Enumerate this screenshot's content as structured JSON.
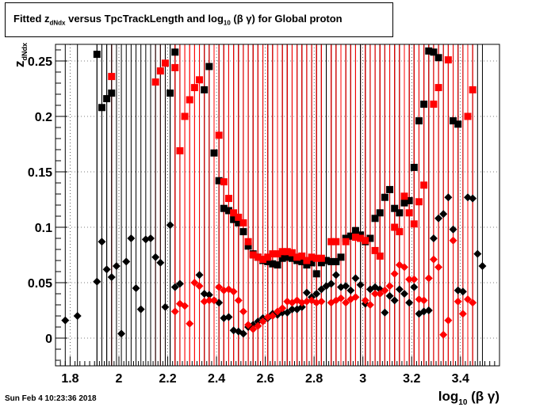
{
  "chart_data": {
    "type": "scatter",
    "title_parts": {
      "pre": "Fitted  z",
      "sub": "dNdx",
      "mid": " versus TpcTrackLength and log",
      "sub2": "10",
      "post": " (β γ) for Global proton"
    },
    "xlabel": "log10 (β γ)",
    "ylabel": "zdNdx",
    "xlim": [
      1.74,
      3.56
    ],
    "ylim": [
      -0.025,
      0.265
    ],
    "x_ticks": [
      "1.8",
      "2",
      "2.2",
      "2.4",
      "2.6",
      "2.8",
      "3",
      "3.2",
      "3.4"
    ],
    "y_ticks": [
      "0",
      "0.05",
      "0.1",
      "0.15",
      "0.2",
      "0.25"
    ],
    "grid": true,
    "series": [
      {
        "marker": "square",
        "color": "#000000",
        "points": [
          [
            1.91,
            0.256
          ],
          [
            1.93,
            0.208
          ],
          [
            1.95,
            0.216
          ],
          [
            1.97,
            0.221
          ],
          [
            2.21,
            0.221
          ],
          [
            2.23,
            0.258
          ],
          [
            2.35,
            0.224
          ],
          [
            2.37,
            0.245
          ],
          [
            2.39,
            0.167
          ],
          [
            2.41,
            0.142
          ],
          [
            2.43,
            0.117
          ],
          [
            2.45,
            0.115
          ],
          [
            2.47,
            0.107
          ],
          [
            2.49,
            0.104
          ],
          [
            2.51,
            0.096
          ],
          [
            2.53,
            0.083
          ],
          [
            2.55,
            0.076
          ],
          [
            2.57,
            0.073
          ],
          [
            2.59,
            0.07
          ],
          [
            2.61,
            0.069
          ],
          [
            2.63,
            0.067
          ],
          [
            2.65,
            0.066
          ],
          [
            2.67,
            0.072
          ],
          [
            2.69,
            0.073
          ],
          [
            2.71,
            0.072
          ],
          [
            2.73,
            0.07
          ],
          [
            2.75,
            0.069
          ],
          [
            2.77,
            0.066
          ],
          [
            2.79,
            0.068
          ],
          [
            2.81,
            0.058
          ],
          [
            2.83,
            0.068
          ],
          [
            2.85,
            0.07
          ],
          [
            2.87,
            0.069
          ],
          [
            2.89,
            0.069
          ],
          [
            2.91,
            0.073
          ],
          [
            2.93,
            0.09
          ],
          [
            2.95,
            0.092
          ],
          [
            2.97,
            0.097
          ],
          [
            2.99,
            0.093
          ],
          [
            3.01,
            0.087
          ],
          [
            3.03,
            0.09
          ],
          [
            3.05,
            0.108
          ],
          [
            3.07,
            0.113
          ],
          [
            3.09,
            0.127
          ],
          [
            3.11,
            0.134
          ],
          [
            3.13,
            0.117
          ],
          [
            3.15,
            0.113
          ],
          [
            3.17,
            0.122
          ],
          [
            3.19,
            0.124
          ],
          [
            3.21,
            0.154
          ],
          [
            3.23,
            0.196
          ],
          [
            3.25,
            0.211
          ],
          [
            3.27,
            0.259
          ],
          [
            3.29,
            0.258
          ],
          [
            3.31,
            0.253
          ],
          [
            3.37,
            0.196
          ],
          [
            3.39,
            0.193
          ]
        ]
      },
      {
        "marker": "square",
        "color": "#ff0000",
        "points": [
          [
            1.97,
            0.236
          ],
          [
            2.15,
            0.231
          ],
          [
            2.17,
            0.241
          ],
          [
            2.19,
            0.248
          ],
          [
            2.23,
            0.244
          ],
          [
            2.25,
            0.169
          ],
          [
            2.27,
            0.2
          ],
          [
            2.29,
            0.215
          ],
          [
            2.31,
            0.226
          ],
          [
            2.33,
            0.233
          ],
          [
            2.41,
            0.183
          ],
          [
            2.43,
            0.141
          ],
          [
            2.45,
            0.126
          ],
          [
            2.47,
            0.113
          ],
          [
            2.49,
            0.109
          ],
          [
            2.51,
            0.104
          ],
          [
            2.53,
            0.087
          ],
          [
            2.55,
            0.075
          ],
          [
            2.57,
            0.073
          ],
          [
            2.59,
            0.071
          ],
          [
            2.61,
            0.073
          ],
          [
            2.63,
            0.076
          ],
          [
            2.65,
            0.076
          ],
          [
            2.67,
            0.078
          ],
          [
            2.69,
            0.078
          ],
          [
            2.71,
            0.077
          ],
          [
            2.73,
            0.073
          ],
          [
            2.75,
            0.074
          ],
          [
            2.77,
            0.07
          ],
          [
            2.79,
            0.073
          ],
          [
            2.81,
            0.072
          ],
          [
            2.83,
            0.072
          ],
          [
            2.87,
            0.087
          ],
          [
            2.89,
            0.087
          ],
          [
            2.93,
            0.087
          ],
          [
            2.97,
            0.091
          ],
          [
            2.99,
            0.09
          ],
          [
            3.01,
            0.088
          ],
          [
            3.05,
            0.079
          ],
          [
            3.07,
            0.074
          ],
          [
            3.13,
            0.1
          ],
          [
            3.15,
            0.096
          ],
          [
            3.17,
            0.128
          ],
          [
            3.19,
            0.113
          ],
          [
            3.21,
            0.103
          ],
          [
            3.23,
            0.123
          ],
          [
            3.25,
            0.138
          ],
          [
            3.29,
            0.211
          ],
          [
            3.31,
            0.226
          ],
          [
            3.35,
            0.251
          ],
          [
            3.43,
            0.2
          ],
          [
            3.45,
            0.224
          ]
        ]
      },
      {
        "marker": "diamond",
        "color": "#000000",
        "points": [
          [
            1.78,
            0.016
          ],
          [
            1.83,
            0.02
          ],
          [
            1.91,
            0.051
          ],
          [
            1.93,
            0.087
          ],
          [
            1.95,
            0.062
          ],
          [
            1.97,
            0.055
          ],
          [
            1.99,
            0.065
          ],
          [
            2.01,
            0.004
          ],
          [
            2.03,
            0.069
          ],
          [
            2.05,
            0.09
          ],
          [
            2.07,
            0.045
          ],
          [
            2.09,
            0.026
          ],
          [
            2.11,
            0.089
          ],
          [
            2.13,
            0.09
          ],
          [
            2.15,
            0.073
          ],
          [
            2.17,
            0.068
          ],
          [
            2.19,
            0.028
          ],
          [
            2.21,
            0.102
          ],
          [
            2.23,
            0.046
          ],
          [
            2.25,
            0.049
          ],
          [
            2.33,
            0.057
          ],
          [
            2.35,
            0.04
          ],
          [
            2.37,
            0.039
          ],
          [
            2.39,
            0.034
          ],
          [
            2.41,
            0.032
          ],
          [
            2.43,
            0.018
          ],
          [
            2.45,
            0.019
          ],
          [
            2.47,
            0.007
          ],
          [
            2.49,
            0.006
          ],
          [
            2.51,
            0.004
          ],
          [
            2.53,
            0.01
          ],
          [
            2.55,
            0.012
          ],
          [
            2.57,
            0.015
          ],
          [
            2.59,
            0.018
          ],
          [
            2.61,
            0.018
          ],
          [
            2.63,
            0.022
          ],
          [
            2.65,
            0.021
          ],
          [
            2.67,
            0.023
          ],
          [
            2.69,
            0.023
          ],
          [
            2.71,
            0.026
          ],
          [
            2.73,
            0.026
          ],
          [
            2.75,
            0.028
          ],
          [
            2.77,
            0.041
          ],
          [
            2.79,
            0.037
          ],
          [
            2.81,
            0.04
          ],
          [
            2.83,
            0.044
          ],
          [
            2.85,
            0.047
          ],
          [
            2.87,
            0.049
          ],
          [
            2.89,
            0.057
          ],
          [
            2.91,
            0.046
          ],
          [
            2.93,
            0.047
          ],
          [
            2.95,
            0.043
          ],
          [
            2.97,
            0.054
          ],
          [
            2.99,
            0.048
          ],
          [
            3.01,
            0.031
          ],
          [
            3.03,
            0.044
          ],
          [
            3.05,
            0.046
          ],
          [
            3.07,
            0.044
          ],
          [
            3.09,
            0.023
          ],
          [
            3.11,
            0.038
          ],
          [
            3.13,
            0.034
          ],
          [
            3.15,
            0.044
          ],
          [
            3.17,
            0.04
          ],
          [
            3.19,
            0.032
          ],
          [
            3.21,
            0.046
          ],
          [
            3.23,
            0.022
          ],
          [
            3.25,
            0.024
          ],
          [
            3.27,
            0.025
          ],
          [
            3.29,
            0.09
          ],
          [
            3.31,
            0.108
          ],
          [
            3.33,
            0.112
          ],
          [
            3.35,
            0.127
          ],
          [
            3.37,
            0.098
          ],
          [
            3.39,
            0.043
          ],
          [
            3.41,
            0.042
          ],
          [
            3.43,
            0.127
          ],
          [
            3.45,
            0.126
          ],
          [
            3.47,
            0.076
          ],
          [
            3.49,
            0.065
          ]
        ]
      },
      {
        "marker": "diamond",
        "color": "#ff0000",
        "points": [
          [
            2.23,
            0.024
          ],
          [
            2.25,
            0.031
          ],
          [
            2.27,
            0.029
          ],
          [
            2.29,
            0.013
          ],
          [
            2.31,
            0.05
          ],
          [
            2.33,
            0.047
          ],
          [
            2.35,
            0.033
          ],
          [
            2.37,
            0.034
          ],
          [
            2.39,
            0.034
          ],
          [
            2.41,
            0.046
          ],
          [
            2.43,
            0.043
          ],
          [
            2.45,
            0.044
          ],
          [
            2.47,
            0.042
          ],
          [
            2.49,
            0.034
          ],
          [
            2.51,
            0.024
          ],
          [
            2.53,
            0.012
          ],
          [
            2.55,
            0.008
          ],
          [
            2.57,
            0.011
          ],
          [
            2.59,
            0.015
          ],
          [
            2.61,
            0.019
          ],
          [
            2.63,
            0.02
          ],
          [
            2.65,
            0.024
          ],
          [
            2.67,
            0.027
          ],
          [
            2.69,
            0.033
          ],
          [
            2.71,
            0.032
          ],
          [
            2.73,
            0.034
          ],
          [
            2.75,
            0.032
          ],
          [
            2.77,
            0.033
          ],
          [
            2.79,
            0.034
          ],
          [
            2.81,
            0.032
          ],
          [
            2.83,
            0.033
          ],
          [
            2.87,
            0.032
          ],
          [
            2.89,
            0.034
          ],
          [
            2.91,
            0.036
          ],
          [
            2.93,
            0.032
          ],
          [
            2.95,
            0.035
          ],
          [
            2.97,
            0.037
          ],
          [
            3.01,
            0.034
          ],
          [
            3.03,
            0.03
          ],
          [
            3.05,
            0.04
          ],
          [
            3.07,
            0.04
          ],
          [
            3.09,
            0.043
          ],
          [
            3.11,
            0.047
          ],
          [
            3.13,
            0.058
          ],
          [
            3.15,
            0.066
          ],
          [
            3.17,
            0.064
          ],
          [
            3.19,
            0.053
          ],
          [
            3.21,
            0.053
          ],
          [
            3.23,
            0.035
          ],
          [
            3.25,
            0.034
          ],
          [
            3.27,
            0.054
          ],
          [
            3.29,
            0.071
          ],
          [
            3.31,
            0.064
          ],
          [
            3.33,
            0.003
          ],
          [
            3.35,
            0.016
          ],
          [
            3.37,
            0.088
          ],
          [
            3.39,
            0.033
          ],
          [
            3.41,
            0.022
          ],
          [
            3.43,
            0.035
          ],
          [
            3.45,
            0.032
          ]
        ]
      }
    ]
  },
  "footer": {
    "timestamp": "Sun Feb  4 10:23:36 2018"
  }
}
